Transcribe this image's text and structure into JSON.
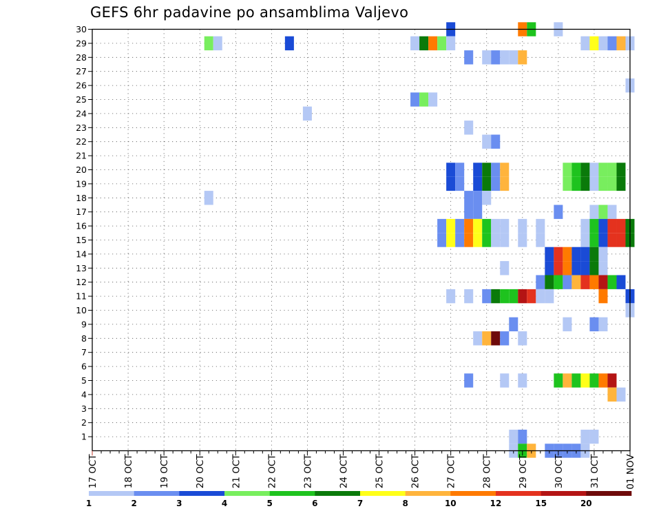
{
  "chart_data": {
    "type": "heatmap",
    "title": "GEFS 6hr padavine po ansamblima Valjevo",
    "x_ticks": [
      "17 OCT",
      "18 OCT",
      "19 OCT",
      "20 OCT",
      "21 OCT",
      "22 OCT",
      "23 OCT",
      "24 OCT",
      "25 OCT",
      "26 OCT",
      "27 OCT",
      "28 OCT",
      "29 OCT",
      "30 OCT",
      "31 OCT",
      "01 NOV"
    ],
    "y_ticks": [
      "1",
      "2",
      "3",
      "4",
      "5",
      "6",
      "7",
      "8",
      "9",
      "10",
      "11",
      "12",
      "13",
      "14",
      "15",
      "16",
      "17",
      "18",
      "19",
      "20",
      "21",
      "22",
      "23",
      "24",
      "25",
      "26",
      "27",
      "28",
      "29",
      "30"
    ],
    "xlim": [
      0,
      60
    ],
    "ylim": [
      0,
      30
    ],
    "x_unit": "6h step from 17 OCT 00Z",
    "grid": true,
    "color_scale": {
      "labels": [
        "1",
        "2",
        "3",
        "4",
        "5",
        "6",
        "7",
        "8",
        "10",
        "12",
        "15",
        "20"
      ],
      "colors": [
        "#b4c8f5",
        "#6a8ef0",
        "#1a4bd6",
        "#78ee5e",
        "#1ec31e",
        "#0a7a0a",
        "#ffff19",
        "#ffb43c",
        "#ff7a00",
        "#e4321e",
        "#b41414",
        "#6e0a0a"
      ]
    },
    "cells": [
      {
        "x": 40,
        "y": 30,
        "v": 3
      },
      {
        "x": 48,
        "y": 30,
        "v": 10
      },
      {
        "x": 49,
        "y": 30,
        "v": 5
      },
      {
        "x": 52,
        "y": 30,
        "v": 1
      },
      {
        "x": 13,
        "y": 29,
        "v": 4
      },
      {
        "x": 14,
        "y": 29,
        "v": 1
      },
      {
        "x": 22,
        "y": 29,
        "v": 3
      },
      {
        "x": 36,
        "y": 29,
        "v": 1
      },
      {
        "x": 37,
        "y": 29,
        "v": 6
      },
      {
        "x": 38,
        "y": 29,
        "v": 10
      },
      {
        "x": 39,
        "y": 29,
        "v": 4
      },
      {
        "x": 40,
        "y": 29,
        "v": 1
      },
      {
        "x": 55,
        "y": 29,
        "v": 1
      },
      {
        "x": 56,
        "y": 29,
        "v": 7
      },
      {
        "x": 57,
        "y": 29,
        "v": 1
      },
      {
        "x": 58,
        "y": 29,
        "v": 2
      },
      {
        "x": 59,
        "y": 29,
        "v": 8
      },
      {
        "x": 60,
        "y": 29,
        "v": 1
      },
      {
        "x": 42,
        "y": 28,
        "v": 2
      },
      {
        "x": 44,
        "y": 28,
        "v": 1
      },
      {
        "x": 45,
        "y": 28,
        "v": 2
      },
      {
        "x": 46,
        "y": 28,
        "v": 1
      },
      {
        "x": 47,
        "y": 28,
        "v": 1
      },
      {
        "x": 48,
        "y": 28,
        "v": 8
      },
      {
        "x": 60,
        "y": 26,
        "v": 1
      },
      {
        "x": 36,
        "y": 25,
        "v": 2
      },
      {
        "x": 37,
        "y": 25,
        "v": 4
      },
      {
        "x": 38,
        "y": 25,
        "v": 1
      },
      {
        "x": 24,
        "y": 24,
        "v": 1
      },
      {
        "x": 42,
        "y": 23,
        "v": 1
      },
      {
        "x": 44,
        "y": 22,
        "v": 1
      },
      {
        "x": 45,
        "y": 22,
        "v": 2
      },
      {
        "x": 40,
        "y": 20,
        "v": 3
      },
      {
        "x": 41,
        "y": 20,
        "v": 2
      },
      {
        "x": 43,
        "y": 20,
        "v": 3
      },
      {
        "x": 44,
        "y": 20,
        "v": 6
      },
      {
        "x": 45,
        "y": 20,
        "v": 2
      },
      {
        "x": 46,
        "y": 20,
        "v": 8
      },
      {
        "x": 53,
        "y": 20,
        "v": 4
      },
      {
        "x": 54,
        "y": 20,
        "v": 5
      },
      {
        "x": 55,
        "y": 20,
        "v": 6
      },
      {
        "x": 56,
        "y": 20,
        "v": 1
      },
      {
        "x": 57,
        "y": 20,
        "v": 4
      },
      {
        "x": 58,
        "y": 20,
        "v": 4
      },
      {
        "x": 59,
        "y": 20,
        "v": 6
      },
      {
        "x": 40,
        "y": 19,
        "v": 3
      },
      {
        "x": 41,
        "y": 19,
        "v": 2
      },
      {
        "x": 43,
        "y": 19,
        "v": 3
      },
      {
        "x": 44,
        "y": 19,
        "v": 6
      },
      {
        "x": 45,
        "y": 19,
        "v": 2
      },
      {
        "x": 46,
        "y": 19,
        "v": 8
      },
      {
        "x": 53,
        "y": 19,
        "v": 4
      },
      {
        "x": 54,
        "y": 19,
        "v": 5
      },
      {
        "x": 55,
        "y": 19,
        "v": 6
      },
      {
        "x": 56,
        "y": 19,
        "v": 1
      },
      {
        "x": 57,
        "y": 19,
        "v": 4
      },
      {
        "x": 58,
        "y": 19,
        "v": 4
      },
      {
        "x": 59,
        "y": 19,
        "v": 6
      },
      {
        "x": 13,
        "y": 18,
        "v": 1
      },
      {
        "x": 42,
        "y": 18,
        "v": 2
      },
      {
        "x": 43,
        "y": 18,
        "v": 2
      },
      {
        "x": 44,
        "y": 18,
        "v": 1
      },
      {
        "x": 42,
        "y": 17,
        "v": 2
      },
      {
        "x": 43,
        "y": 17,
        "v": 2
      },
      {
        "x": 52,
        "y": 17,
        "v": 2
      },
      {
        "x": 56,
        "y": 17,
        "v": 1
      },
      {
        "x": 57,
        "y": 17,
        "v": 4
      },
      {
        "x": 58,
        "y": 17,
        "v": 1
      },
      {
        "x": 39,
        "y": 16,
        "v": 2
      },
      {
        "x": 40,
        "y": 16,
        "v": 7
      },
      {
        "x": 41,
        "y": 16,
        "v": 2
      },
      {
        "x": 42,
        "y": 16,
        "v": 10
      },
      {
        "x": 43,
        "y": 16,
        "v": 7
      },
      {
        "x": 44,
        "y": 16,
        "v": 5
      },
      {
        "x": 45,
        "y": 16,
        "v": 1
      },
      {
        "x": 46,
        "y": 16,
        "v": 1
      },
      {
        "x": 48,
        "y": 16,
        "v": 1
      },
      {
        "x": 50,
        "y": 16,
        "v": 1
      },
      {
        "x": 55,
        "y": 16,
        "v": 1
      },
      {
        "x": 56,
        "y": 16,
        "v": 5
      },
      {
        "x": 57,
        "y": 16,
        "v": 3
      },
      {
        "x": 58,
        "y": 16,
        "v": 12
      },
      {
        "x": 59,
        "y": 16,
        "v": 12
      },
      {
        "x": 60,
        "y": 16,
        "v": 6
      },
      {
        "x": 39,
        "y": 15,
        "v": 2
      },
      {
        "x": 40,
        "y": 15,
        "v": 7
      },
      {
        "x": 41,
        "y": 15,
        "v": 2
      },
      {
        "x": 42,
        "y": 15,
        "v": 10
      },
      {
        "x": 43,
        "y": 15,
        "v": 7
      },
      {
        "x": 44,
        "y": 15,
        "v": 5
      },
      {
        "x": 45,
        "y": 15,
        "v": 1
      },
      {
        "x": 46,
        "y": 15,
        "v": 1
      },
      {
        "x": 48,
        "y": 15,
        "v": 1
      },
      {
        "x": 50,
        "y": 15,
        "v": 1
      },
      {
        "x": 55,
        "y": 15,
        "v": 1
      },
      {
        "x": 56,
        "y": 15,
        "v": 5
      },
      {
        "x": 57,
        "y": 15,
        "v": 3
      },
      {
        "x": 58,
        "y": 15,
        "v": 12
      },
      {
        "x": 59,
        "y": 15,
        "v": 12
      },
      {
        "x": 60,
        "y": 15,
        "v": 6
      },
      {
        "x": 51,
        "y": 14,
        "v": 3
      },
      {
        "x": 52,
        "y": 14,
        "v": 12
      },
      {
        "x": 53,
        "y": 14,
        "v": 10
      },
      {
        "x": 54,
        "y": 14,
        "v": 3
      },
      {
        "x": 55,
        "y": 14,
        "v": 3
      },
      {
        "x": 56,
        "y": 14,
        "v": 6
      },
      {
        "x": 57,
        "y": 14,
        "v": 1
      },
      {
        "x": 46,
        "y": 13,
        "v": 1
      },
      {
        "x": 51,
        "y": 13,
        "v": 3
      },
      {
        "x": 52,
        "y": 13,
        "v": 12
      },
      {
        "x": 53,
        "y": 13,
        "v": 10
      },
      {
        "x": 54,
        "y": 13,
        "v": 3
      },
      {
        "x": 55,
        "y": 13,
        "v": 3
      },
      {
        "x": 56,
        "y": 13,
        "v": 6
      },
      {
        "x": 57,
        "y": 13,
        "v": 1
      },
      {
        "x": 50,
        "y": 12,
        "v": 2
      },
      {
        "x": 51,
        "y": 12,
        "v": 6
      },
      {
        "x": 52,
        "y": 12,
        "v": 5
      },
      {
        "x": 53,
        "y": 12,
        "v": 2
      },
      {
        "x": 54,
        "y": 12,
        "v": 8
      },
      {
        "x": 55,
        "y": 12,
        "v": 12
      },
      {
        "x": 56,
        "y": 12,
        "v": 10
      },
      {
        "x": 57,
        "y": 12,
        "v": 15
      },
      {
        "x": 58,
        "y": 12,
        "v": 5
      },
      {
        "x": 59,
        "y": 12,
        "v": 3
      },
      {
        "x": 40,
        "y": 11,
        "v": 1
      },
      {
        "x": 42,
        "y": 11,
        "v": 1
      },
      {
        "x": 44,
        "y": 11,
        "v": 2
      },
      {
        "x": 45,
        "y": 11,
        "v": 6
      },
      {
        "x": 46,
        "y": 11,
        "v": 5
      },
      {
        "x": 47,
        "y": 11,
        "v": 5
      },
      {
        "x": 48,
        "y": 11,
        "v": 15
      },
      {
        "x": 49,
        "y": 11,
        "v": 12
      },
      {
        "x": 50,
        "y": 11,
        "v": 1
      },
      {
        "x": 51,
        "y": 11,
        "v": 1
      },
      {
        "x": 57,
        "y": 11,
        "v": 10
      },
      {
        "x": 60,
        "y": 11,
        "v": 3
      },
      {
        "x": 60,
        "y": 10,
        "v": 1
      },
      {
        "x": 47,
        "y": 9,
        "v": 2
      },
      {
        "x": 53,
        "y": 9,
        "v": 1
      },
      {
        "x": 56,
        "y": 9,
        "v": 2
      },
      {
        "x": 57,
        "y": 9,
        "v": 1
      },
      {
        "x": 43,
        "y": 8,
        "v": 1
      },
      {
        "x": 44,
        "y": 8,
        "v": 8
      },
      {
        "x": 45,
        "y": 8,
        "v": 20
      },
      {
        "x": 46,
        "y": 8,
        "v": 2
      },
      {
        "x": 48,
        "y": 8,
        "v": 1
      },
      {
        "x": 42,
        "y": 5,
        "v": 2
      },
      {
        "x": 46,
        "y": 5,
        "v": 1
      },
      {
        "x": 48,
        "y": 5,
        "v": 1
      },
      {
        "x": 52,
        "y": 5,
        "v": 5
      },
      {
        "x": 53,
        "y": 5,
        "v": 8
      },
      {
        "x": 54,
        "y": 5,
        "v": 5
      },
      {
        "x": 55,
        "y": 5,
        "v": 7
      },
      {
        "x": 56,
        "y": 5,
        "v": 5
      },
      {
        "x": 57,
        "y": 5,
        "v": 10
      },
      {
        "x": 58,
        "y": 5,
        "v": 15
      },
      {
        "x": 58,
        "y": 4,
        "v": 8
      },
      {
        "x": 59,
        "y": 4,
        "v": 1
      },
      {
        "x": 47,
        "y": 1,
        "v": 1
      },
      {
        "x": 48,
        "y": 1,
        "v": 2
      },
      {
        "x": 55,
        "y": 1,
        "v": 1
      },
      {
        "x": 56,
        "y": 1,
        "v": 1
      },
      {
        "x": 47,
        "y": 0,
        "v": 1
      },
      {
        "x": 48,
        "y": 0,
        "v": 5
      },
      {
        "x": 49,
        "y": 0,
        "v": 8
      },
      {
        "x": 51,
        "y": 0,
        "v": 2
      },
      {
        "x": 52,
        "y": 0,
        "v": 2
      },
      {
        "x": 53,
        "y": 0,
        "v": 2
      },
      {
        "x": 54,
        "y": 0,
        "v": 2
      },
      {
        "x": 55,
        "y": 0,
        "v": 1
      }
    ]
  }
}
